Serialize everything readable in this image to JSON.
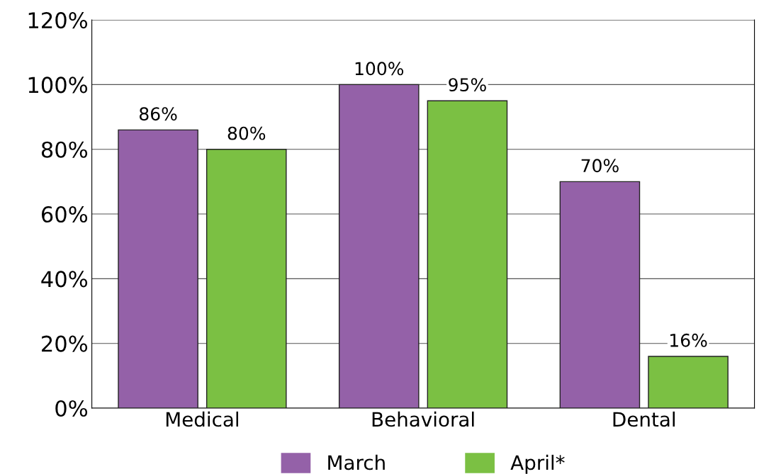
{
  "chart_data": {
    "type": "bar",
    "categories": [
      "Medical",
      "Behavioral",
      "Dental"
    ],
    "series": [
      {
        "name": "March",
        "color": "#9461a8",
        "values": [
          86,
          100,
          70
        ],
        "value_labels": [
          "86%",
          "100%",
          "70%"
        ]
      },
      {
        "name": "April*",
        "color": "#7bc043",
        "values": [
          80,
          95,
          16
        ],
        "value_labels": [
          "80%",
          "95%",
          "16%"
        ]
      }
    ],
    "ylim": [
      0,
      120
    ],
    "yticks": [
      {
        "value": 0,
        "label": "0%"
      },
      {
        "value": 20,
        "label": "20%"
      },
      {
        "value": 40,
        "label": "40%"
      },
      {
        "value": 60,
        "label": "60%"
      },
      {
        "value": 80,
        "label": "80%"
      },
      {
        "value": 100,
        "label": "100%"
      },
      {
        "value": 120,
        "label": "120%"
      }
    ],
    "grid": "y",
    "legend": "bottom"
  }
}
